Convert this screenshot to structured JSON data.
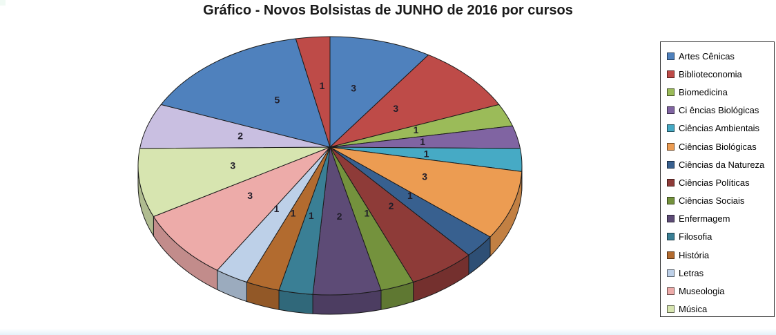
{
  "chart_data": {
    "type": "pie",
    "style": "3d-pie",
    "title": "Gráfico - Novos Bolsistas de JUNHO de 2016 por cursos",
    "legend_position": "right",
    "grid": false,
    "data_label_color": "#201D29",
    "outline_color": "#1B1B1B",
    "slices": [
      {
        "label": "Artes Cênicas",
        "value": 3,
        "color": "#4F81BD",
        "in_legend": true
      },
      {
        "label": "Biblioteconomia",
        "value": 3,
        "color": "#BE4B48",
        "in_legend": true
      },
      {
        "label": "Biomedicina",
        "value": 1,
        "color": "#9BBB59",
        "in_legend": true
      },
      {
        "label": "Ci ências Biológicas",
        "value": 1,
        "color": "#8064A2",
        "in_legend": true
      },
      {
        "label": "Ciências Ambientais",
        "value": 1,
        "color": "#46AAC5",
        "in_legend": true
      },
      {
        "label": "Ciências Biológicas",
        "value": 3,
        "color": "#EC9C52",
        "in_legend": true
      },
      {
        "label": "Ciências da Natureza",
        "value": 1,
        "color": "#38608F",
        "in_legend": true
      },
      {
        "label": "Ciências Políticas",
        "value": 2,
        "color": "#8E3B38",
        "in_legend": true
      },
      {
        "label": "Ciências Sociais",
        "value": 1,
        "color": "#74923D",
        "in_legend": true
      },
      {
        "label": "Enfermagem",
        "value": 2,
        "color": "#5D4B76",
        "in_legend": true
      },
      {
        "label": "Filosofia",
        "value": 1,
        "color": "#3A7F95",
        "in_legend": true
      },
      {
        "label": "História",
        "value": 1,
        "color": "#B26B2F",
        "in_legend": true
      },
      {
        "label": "Letras",
        "value": 1,
        "color": "#BDD0E8",
        "in_legend": true
      },
      {
        "label": "Museologia",
        "value": 3,
        "color": "#EDABA9",
        "in_legend": true
      },
      {
        "label": "Música",
        "value": 3,
        "color": "#D7E5B0",
        "in_legend": true
      },
      {
        "label": "",
        "value": 2,
        "color": "#C9BFE1",
        "in_legend": false
      },
      {
        "label": "",
        "value": 5,
        "color": "#4F81BD",
        "in_legend": false
      },
      {
        "label": "",
        "value": 1,
        "color": "#BE4B48",
        "in_legend": false
      }
    ],
    "legend": {
      "border_color": "#2F2F2F",
      "background": "#FFFFFF"
    }
  },
  "window": {
    "corner_artifact_color": "#F0FAF4",
    "bottom_edge_color_start": "#FEFFFF",
    "bottom_edge_color_end": "#E5F2F9"
  }
}
